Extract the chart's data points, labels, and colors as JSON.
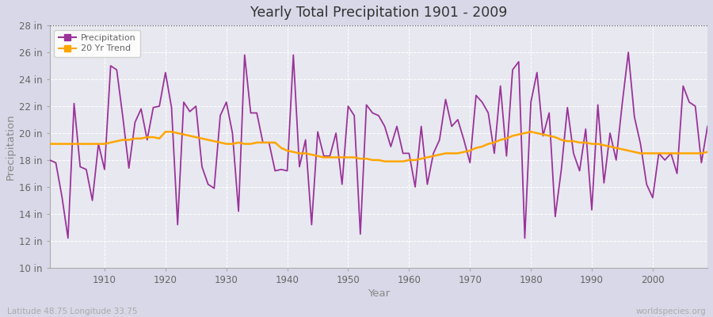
{
  "title": "Yearly Total Precipitation 1901 - 2009",
  "xlabel": "Year",
  "ylabel": "Precipitation",
  "x_label_bottom_left": "Latitude 48.75 Longitude 33.75",
  "x_label_bottom_right": "worldspecies.org",
  "ylim": [
    10,
    28
  ],
  "xlim": [
    1901,
    2009
  ],
  "yticks": [
    10,
    12,
    14,
    16,
    18,
    20,
    22,
    24,
    26,
    28
  ],
  "ytick_labels": [
    "10 in",
    "12 in",
    "14 in",
    "16 in",
    "18 in",
    "20 in",
    "22 in",
    "24 in",
    "26 in",
    "28 in"
  ],
  "xticks": [
    1910,
    1920,
    1930,
    1940,
    1950,
    1960,
    1970,
    1980,
    1990,
    2000
  ],
  "precip_color": "#993399",
  "trend_color": "#FFA500",
  "outer_bg_color": "#D8D8E8",
  "plot_bg_color": "#E8E8F0",
  "grid_color": "#FFFFFF",
  "title_color": "#333333",
  "axis_label_color": "#888888",
  "tick_label_color": "#666666",
  "legend_labels": [
    "Precipitation",
    "20 Yr Trend"
  ],
  "years": [
    1901,
    1902,
    1903,
    1904,
    1905,
    1906,
    1907,
    1908,
    1909,
    1910,
    1911,
    1912,
    1913,
    1914,
    1915,
    1916,
    1917,
    1918,
    1919,
    1920,
    1921,
    1922,
    1923,
    1924,
    1925,
    1926,
    1927,
    1928,
    1929,
    1930,
    1931,
    1932,
    1933,
    1934,
    1935,
    1936,
    1937,
    1938,
    1939,
    1940,
    1941,
    1942,
    1943,
    1944,
    1945,
    1946,
    1947,
    1948,
    1949,
    1950,
    1951,
    1952,
    1953,
    1954,
    1955,
    1956,
    1957,
    1958,
    1959,
    1960,
    1961,
    1962,
    1963,
    1964,
    1965,
    1966,
    1967,
    1968,
    1969,
    1970,
    1971,
    1972,
    1973,
    1974,
    1975,
    1976,
    1977,
    1978,
    1979,
    1980,
    1981,
    1982,
    1983,
    1984,
    1985,
    1986,
    1987,
    1988,
    1989,
    1990,
    1991,
    1992,
    1993,
    1994,
    1995,
    1996,
    1997,
    1998,
    1999,
    2000,
    2001,
    2002,
    2003,
    2004,
    2005,
    2006,
    2007,
    2008,
    2009
  ],
  "precip": [
    18.0,
    17.8,
    15.3,
    12.2,
    22.2,
    17.5,
    17.3,
    15.0,
    19.2,
    17.3,
    25.0,
    24.7,
    21.2,
    17.4,
    20.8,
    21.8,
    19.5,
    21.9,
    22.0,
    24.5,
    21.9,
    13.2,
    22.3,
    21.6,
    22.0,
    17.5,
    16.2,
    15.9,
    21.3,
    22.3,
    20.0,
    14.2,
    25.8,
    21.5,
    21.5,
    19.3,
    19.3,
    17.2,
    17.3,
    17.2,
    25.8,
    17.5,
    19.5,
    13.2,
    20.1,
    18.3,
    18.3,
    20.0,
    16.2,
    22.0,
    21.3,
    12.5,
    22.1,
    21.5,
    21.3,
    20.5,
    19.0,
    20.5,
    18.5,
    18.5,
    16.0,
    20.5,
    16.2,
    18.5,
    19.5,
    22.5,
    20.5,
    21.0,
    19.5,
    17.8,
    22.8,
    22.3,
    21.5,
    18.5,
    23.5,
    18.3,
    24.7,
    25.3,
    12.2,
    22.3,
    24.5,
    19.8,
    21.5,
    13.8,
    17.3,
    21.9,
    18.5,
    17.2,
    20.3,
    14.3,
    22.1,
    16.3,
    20.0,
    18.0,
    22.2,
    26.0,
    21.2,
    19.2,
    16.2,
    15.2,
    18.5,
    18.0,
    18.5,
    17.0,
    23.5,
    22.3,
    22.0,
    17.8,
    20.5
  ],
  "trend": [
    19.2,
    19.2,
    19.2,
    19.2,
    19.2,
    19.2,
    19.2,
    19.2,
    19.2,
    19.2,
    19.3,
    19.4,
    19.5,
    19.5,
    19.6,
    19.6,
    19.7,
    19.7,
    19.6,
    20.1,
    20.1,
    20.0,
    19.9,
    19.8,
    19.7,
    19.6,
    19.5,
    19.4,
    19.3,
    19.2,
    19.2,
    19.3,
    19.2,
    19.2,
    19.3,
    19.3,
    19.3,
    19.3,
    18.9,
    18.7,
    18.6,
    18.5,
    18.5,
    18.4,
    18.3,
    18.2,
    18.2,
    18.2,
    18.2,
    18.2,
    18.2,
    18.1,
    18.1,
    18.0,
    18.0,
    17.9,
    17.9,
    17.9,
    17.9,
    18.0,
    18.0,
    18.1,
    18.2,
    18.3,
    18.4,
    18.5,
    18.5,
    18.5,
    18.6,
    18.7,
    18.9,
    19.0,
    19.2,
    19.3,
    19.5,
    19.6,
    19.8,
    19.9,
    20.0,
    20.1,
    20.0,
    19.9,
    19.8,
    19.7,
    19.5,
    19.4,
    19.4,
    19.3,
    19.3,
    19.2,
    19.2,
    19.1,
    19.0,
    18.9,
    18.8,
    18.7,
    18.6,
    18.5,
    18.5,
    18.5,
    18.5,
    18.5,
    18.5,
    18.5,
    18.5,
    18.5,
    18.5,
    18.5,
    18.6
  ]
}
